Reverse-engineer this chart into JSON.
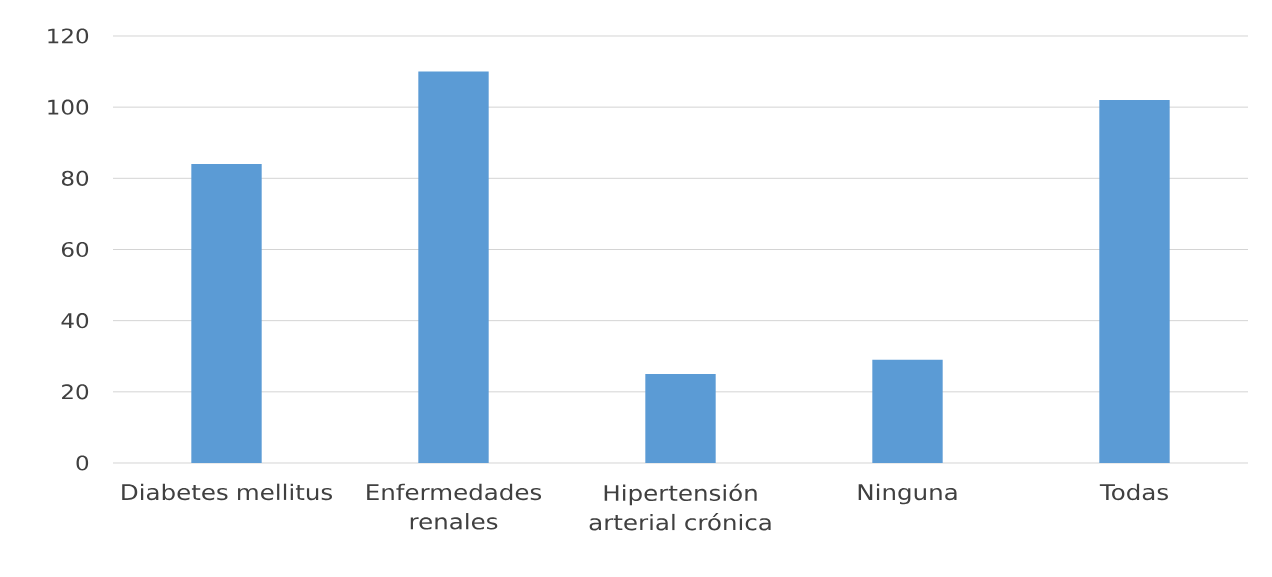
{
  "chart_data": {
    "type": "bar",
    "categories": [
      "Diabetes mellitus",
      "Enfermedades renales",
      "Hipertensión arterial crónica",
      "Ninguna",
      "Todas"
    ],
    "values": [
      84,
      110,
      25,
      29,
      102
    ],
    "color": "#5b9bd5",
    "ylim": [
      0,
      120
    ],
    "yticks": [
      0,
      20,
      40,
      60,
      80,
      100,
      120
    ],
    "grid": "y"
  }
}
